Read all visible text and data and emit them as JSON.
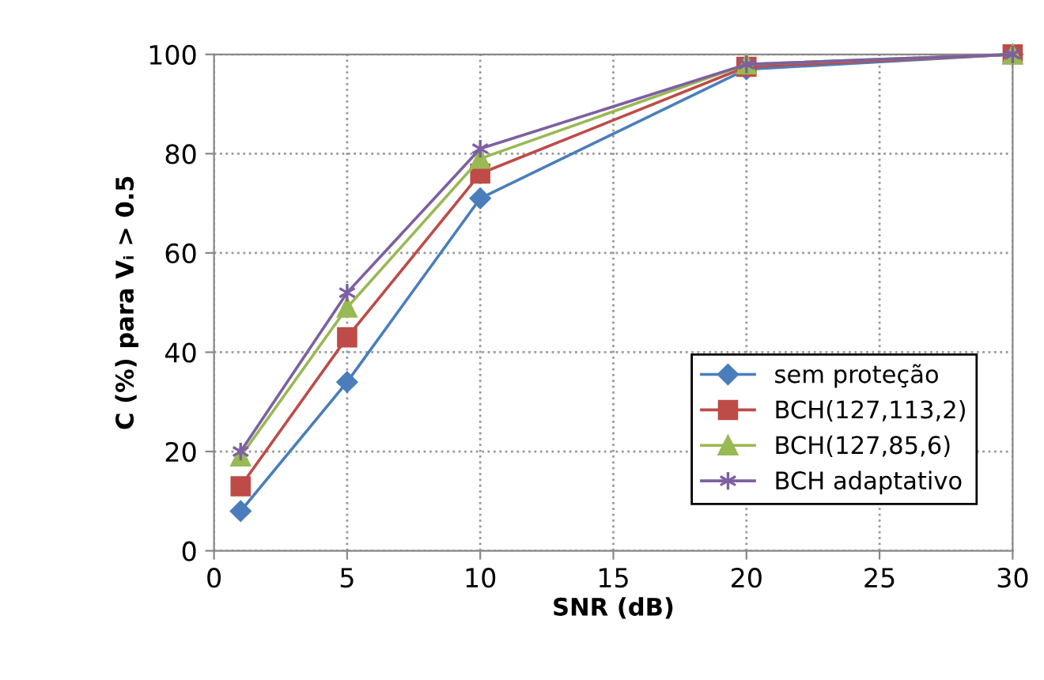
{
  "chart_data": {
    "type": "line",
    "xlabel": "SNR (dB)",
    "ylabel": "C (%) para Vᵢ > 0.5",
    "x": [
      1,
      5,
      10,
      20,
      30
    ],
    "series": [
      {
        "name": "sem proteção",
        "color": "#4a7ebb",
        "marker": "diamond",
        "values": [
          8,
          34,
          71,
          97,
          100
        ]
      },
      {
        "name": "BCH(127,113,2)",
        "color": "#be4b48",
        "marker": "square",
        "values": [
          13,
          43,
          76,
          97.5,
          100
        ]
      },
      {
        "name": "BCH(127,85,6)",
        "color": "#98b954",
        "marker": "triangle",
        "values": [
          19,
          49,
          79,
          98,
          100
        ]
      },
      {
        "name": "BCH adaptativo",
        "color": "#7d60a0",
        "marker": "cross",
        "values": [
          20,
          52,
          81,
          98,
          100
        ]
      }
    ],
    "xlim": [
      0,
      30
    ],
    "xticks": [
      0,
      5,
      10,
      15,
      20,
      25,
      30
    ],
    "ylim": [
      0,
      100
    ],
    "yticks": [
      0,
      20,
      40,
      60,
      80,
      100
    ],
    "grid": true,
    "legend": "bottom right",
    "line_style": "solid"
  }
}
